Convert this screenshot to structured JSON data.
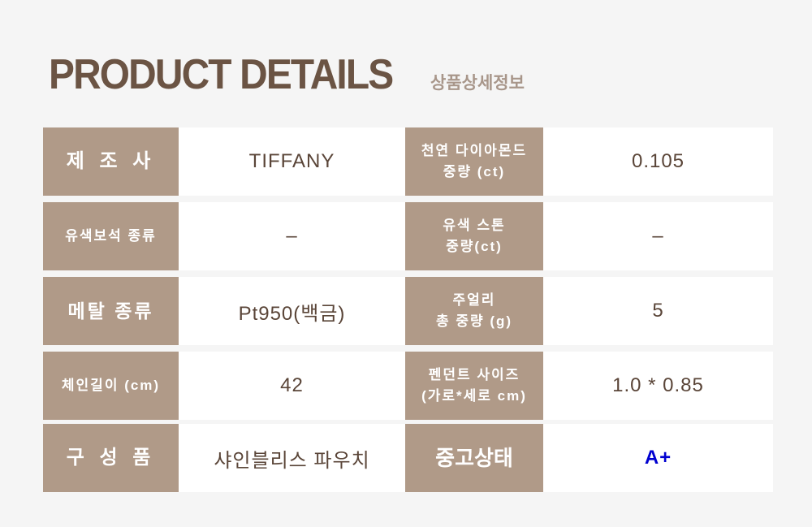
{
  "header": {
    "title": "PRODUCT DETAILS",
    "subtitle": "상품상세정보"
  },
  "rows": [
    {
      "label1": "제 조 사",
      "value1": "TIFFANY",
      "label2": [
        "천연 다이아몬드",
        "중량 (ct)"
      ],
      "value2": "0.105"
    },
    {
      "label1": "유색보석 종류",
      "value1": "–",
      "label2": [
        "유색 스톤",
        "중량(ct)"
      ],
      "value2": "–"
    },
    {
      "label1": "메탈 종류",
      "value1": "Pt950(백금)",
      "label2": [
        "주얼리",
        "총 중량 (g)"
      ],
      "value2": "5"
    },
    {
      "label1": "체인길이 (cm)",
      "value1": "42",
      "label2": [
        "펜던트 사이즈",
        "(가로*세로 cm)"
      ],
      "value2": "1.0 * 0.85"
    },
    {
      "label1": "구 성 품",
      "value1": "샤인블리스 파우치",
      "label2": [
        "중고상태"
      ],
      "value2": "A+"
    }
  ],
  "colors": {
    "label_bg": "#b09a88",
    "title": "#6b5444",
    "grade": "#0000d0"
  }
}
